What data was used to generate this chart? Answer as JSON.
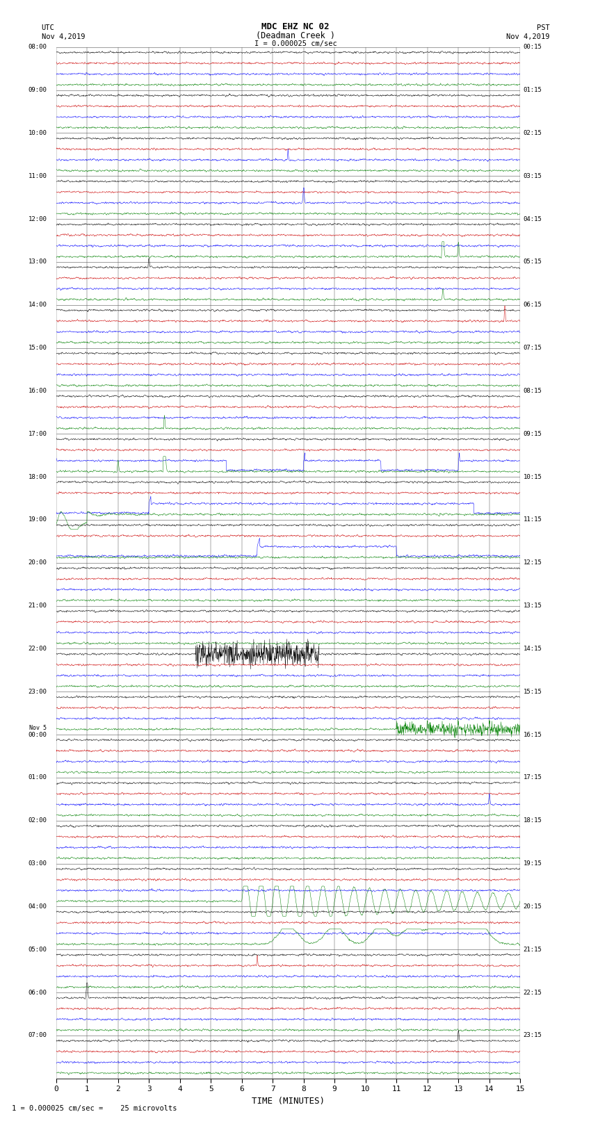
{
  "title_line1": "MDC EHZ NC 02",
  "title_line2": "(Deadman Creek )",
  "title_line3": "I = 0.000025 cm/sec",
  "label_utc": "UTC",
  "label_date_left": "Nov 4,2019",
  "label_pst": "PST",
  "label_date_right": "Nov 4,2019",
  "xlabel": "TIME (MINUTES)",
  "scale_label": "1 = 0.000025 cm/sec =    25 microvolts",
  "bg_color": "#ffffff",
  "x_min": 0,
  "x_max": 15,
  "x_ticks": [
    0,
    1,
    2,
    3,
    4,
    5,
    6,
    7,
    8,
    9,
    10,
    11,
    12,
    13,
    14,
    15
  ],
  "left_times": [
    "08:00",
    "09:00",
    "10:00",
    "11:00",
    "12:00",
    "13:00",
    "14:00",
    "15:00",
    "16:00",
    "17:00",
    "18:00",
    "19:00",
    "20:00",
    "21:00",
    "22:00",
    "23:00",
    "Nov 5\n00:00",
    "01:00",
    "02:00",
    "03:00",
    "04:00",
    "05:00",
    "06:00",
    "07:00"
  ],
  "right_times": [
    "00:15",
    "01:15",
    "02:15",
    "03:15",
    "04:15",
    "05:15",
    "06:15",
    "07:15",
    "08:15",
    "09:15",
    "10:15",
    "11:15",
    "12:15",
    "13:15",
    "14:15",
    "15:15",
    "16:15",
    "17:15",
    "18:15",
    "19:15",
    "20:15",
    "21:15",
    "22:15",
    "23:15"
  ],
  "trace_colors": [
    "black",
    "#cc0000",
    "blue",
    "green"
  ],
  "seed": 42,
  "n_hours": 24,
  "traces_per_hour": 4
}
